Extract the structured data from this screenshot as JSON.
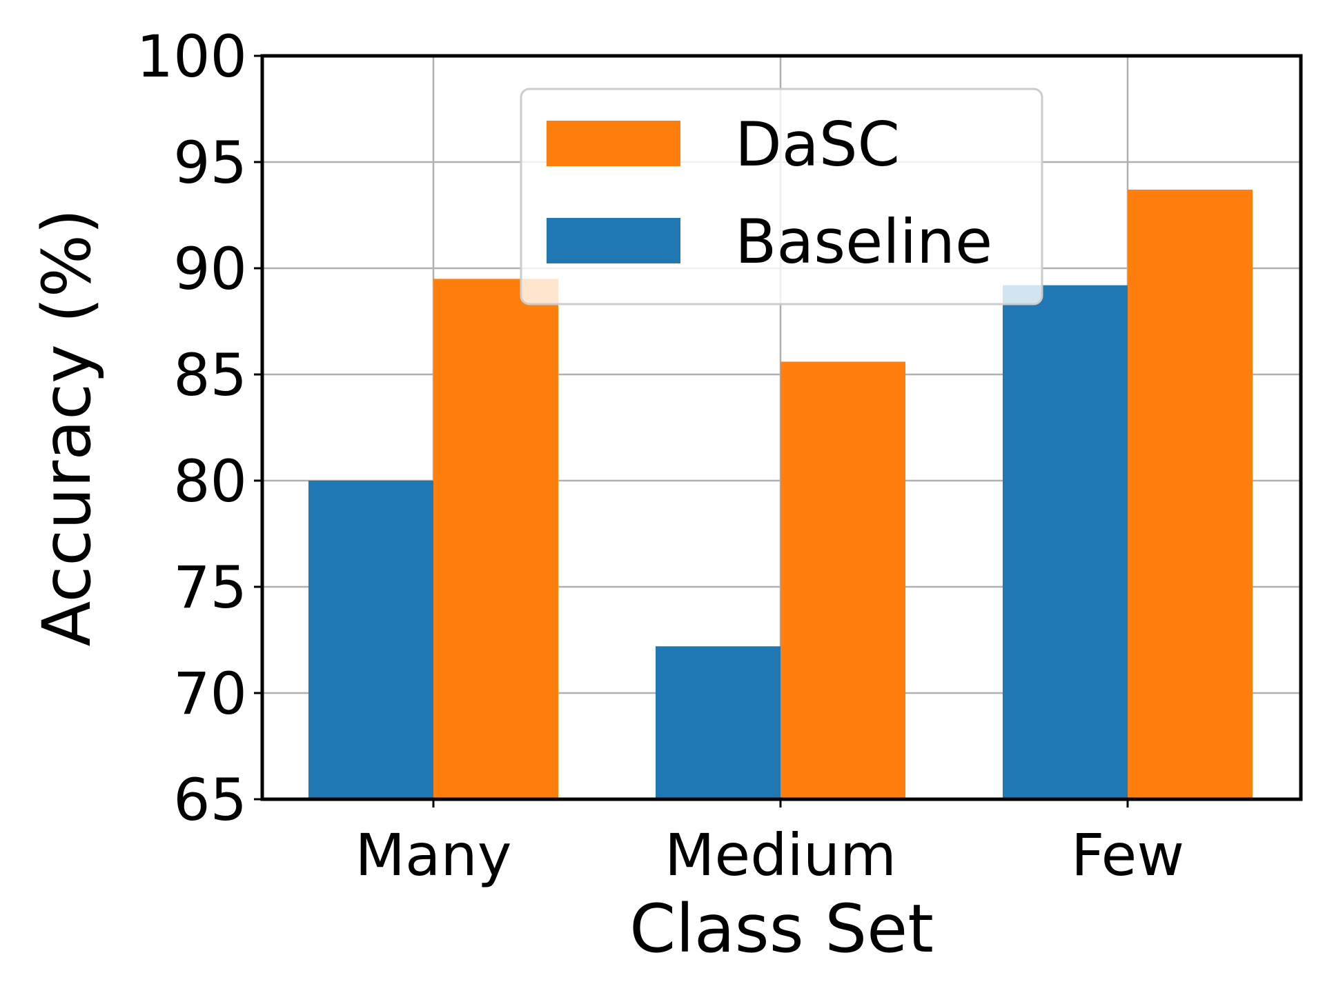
{
  "chart_data": {
    "type": "bar",
    "title": "",
    "xlabel": "Class Set",
    "ylabel": "Accuracy (%)",
    "categories": [
      "Many",
      "Medium",
      "Few"
    ],
    "series": [
      {
        "name": "Baseline",
        "color": "#1f77b4",
        "values": [
          80.0,
          72.2,
          89.2
        ]
      },
      {
        "name": "DaSC",
        "color": "#ff7f0e",
        "values": [
          89.5,
          85.6,
          93.7
        ]
      }
    ],
    "ylim": [
      65,
      100
    ],
    "yticks": [
      65,
      70,
      75,
      80,
      85,
      90,
      95,
      100
    ],
    "grid": true,
    "legend": {
      "position": "top-center",
      "entries": [
        "DaSC",
        "Baseline"
      ]
    }
  }
}
